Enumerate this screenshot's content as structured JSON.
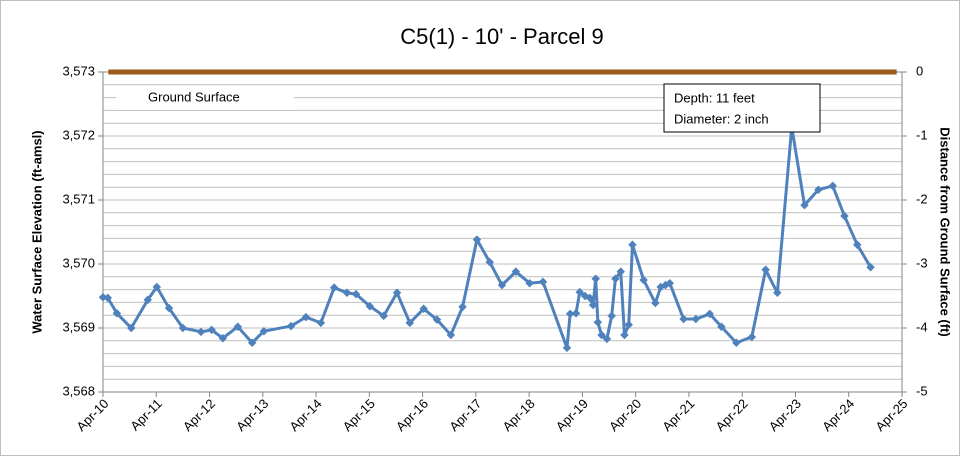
{
  "chart_data": {
    "type": "line",
    "title": "C5(1) - 10' - Parcel 9",
    "y_label": "Water Surface Elevation (ft-amsl)",
    "y2_label": "Distance from Ground Surface (ft)",
    "annotation": [
      "Depth: 11 feet",
      "Diameter: 2 inch"
    ],
    "xlim": [
      0,
      15
    ],
    "xticks": [
      {
        "value": 0,
        "label": "Apr-10"
      },
      {
        "value": 1,
        "label": "Apr-11"
      },
      {
        "value": 2,
        "label": "Apr-12"
      },
      {
        "value": 3,
        "label": "Apr-13"
      },
      {
        "value": 4,
        "label": "Apr-14"
      },
      {
        "value": 5,
        "label": "Apr-15"
      },
      {
        "value": 6,
        "label": "Apr-16"
      },
      {
        "value": 7,
        "label": "Apr-17"
      },
      {
        "value": 8,
        "label": "Apr-18"
      },
      {
        "value": 9,
        "label": "Apr-19"
      },
      {
        "value": 10,
        "label": "Apr-20"
      },
      {
        "value": 11,
        "label": "Apr-21"
      },
      {
        "value": 12,
        "label": "Apr-22"
      },
      {
        "value": 13,
        "label": "Apr-23"
      },
      {
        "value": 14,
        "label": "Apr-24"
      },
      {
        "value": 15,
        "label": "Apr-25"
      }
    ],
    "ylim": [
      3568,
      3573
    ],
    "yticks": [
      {
        "value": 3568,
        "label": "3,568"
      },
      {
        "value": 3569,
        "label": "3,569"
      },
      {
        "value": 3570,
        "label": "3,570"
      },
      {
        "value": 3571,
        "label": "3,571"
      },
      {
        "value": 3572,
        "label": "3,572"
      },
      {
        "value": 3573,
        "label": "3,573"
      }
    ],
    "y2lim": [
      -5,
      0
    ],
    "y2ticks": [
      0,
      -1,
      -2,
      -3,
      -4,
      -5
    ],
    "grid": true,
    "grid_subdivisions": 5,
    "series": [
      {
        "color": "#4f81bd",
        "x": [
          0,
          0.09,
          0.26,
          0.53,
          0.84,
          1.01,
          1.24,
          1.5,
          1.84,
          2.04,
          2.25,
          2.53,
          2.8,
          3.02,
          3.53,
          3.81,
          4.09,
          4.34,
          4.58,
          4.75,
          5.01,
          5.27,
          5.52,
          5.76,
          6.02,
          6.27,
          6.53,
          6.75,
          7.02,
          7.26,
          7.49,
          7.75,
          8.01,
          8.26,
          8.71,
          8.77,
          8.88,
          8.95,
          9.05,
          9.14,
          9.2,
          9.25,
          9.29,
          9.36,
          9.46,
          9.55,
          9.62,
          9.72,
          9.79,
          9.87,
          9.94,
          10.15,
          10.37,
          10.47,
          10.56,
          10.64,
          10.9,
          11.13,
          11.39,
          11.61,
          11.89,
          12.18,
          12.44,
          12.66,
          12.93,
          13.17,
          13.43,
          13.7,
          13.92,
          14.16,
          14.41
        ],
        "values": [
          3569.48,
          3569.47,
          3569.23,
          3569.0,
          3569.44,
          3569.64,
          3569.31,
          3569.0,
          3568.94,
          3568.97,
          3568.84,
          3569.02,
          3568.77,
          3568.95,
          3569.03,
          3569.17,
          3569.08,
          3569.63,
          3569.55,
          3569.53,
          3569.34,
          3569.19,
          3569.55,
          3569.08,
          3569.3,
          3569.13,
          3568.89,
          3569.33,
          3570.38,
          3570.03,
          3569.67,
          3569.88,
          3569.7,
          3569.72,
          3568.69,
          3569.22,
          3569.23,
          3569.56,
          3569.5,
          3569.47,
          3569.36,
          3569.77,
          3569.09,
          3568.89,
          3568.83,
          3569.19,
          3569.77,
          3569.88,
          3568.89,
          3569.05,
          3570.3,
          3569.75,
          3569.39,
          3569.64,
          3569.67,
          3569.7,
          3569.14,
          3569.14,
          3569.22,
          3569.02,
          3568.77,
          3568.86,
          3569.91,
          3569.55,
          3572.14,
          3570.92,
          3571.16,
          3571.22,
          3570.75,
          3570.3,
          3569.95
        ]
      },
      {
        "name": "Ground Surface",
        "color": "#9c5a1d",
        "x": [
          0.1,
          14.9
        ],
        "values": [
          3573,
          3573
        ]
      }
    ]
  }
}
